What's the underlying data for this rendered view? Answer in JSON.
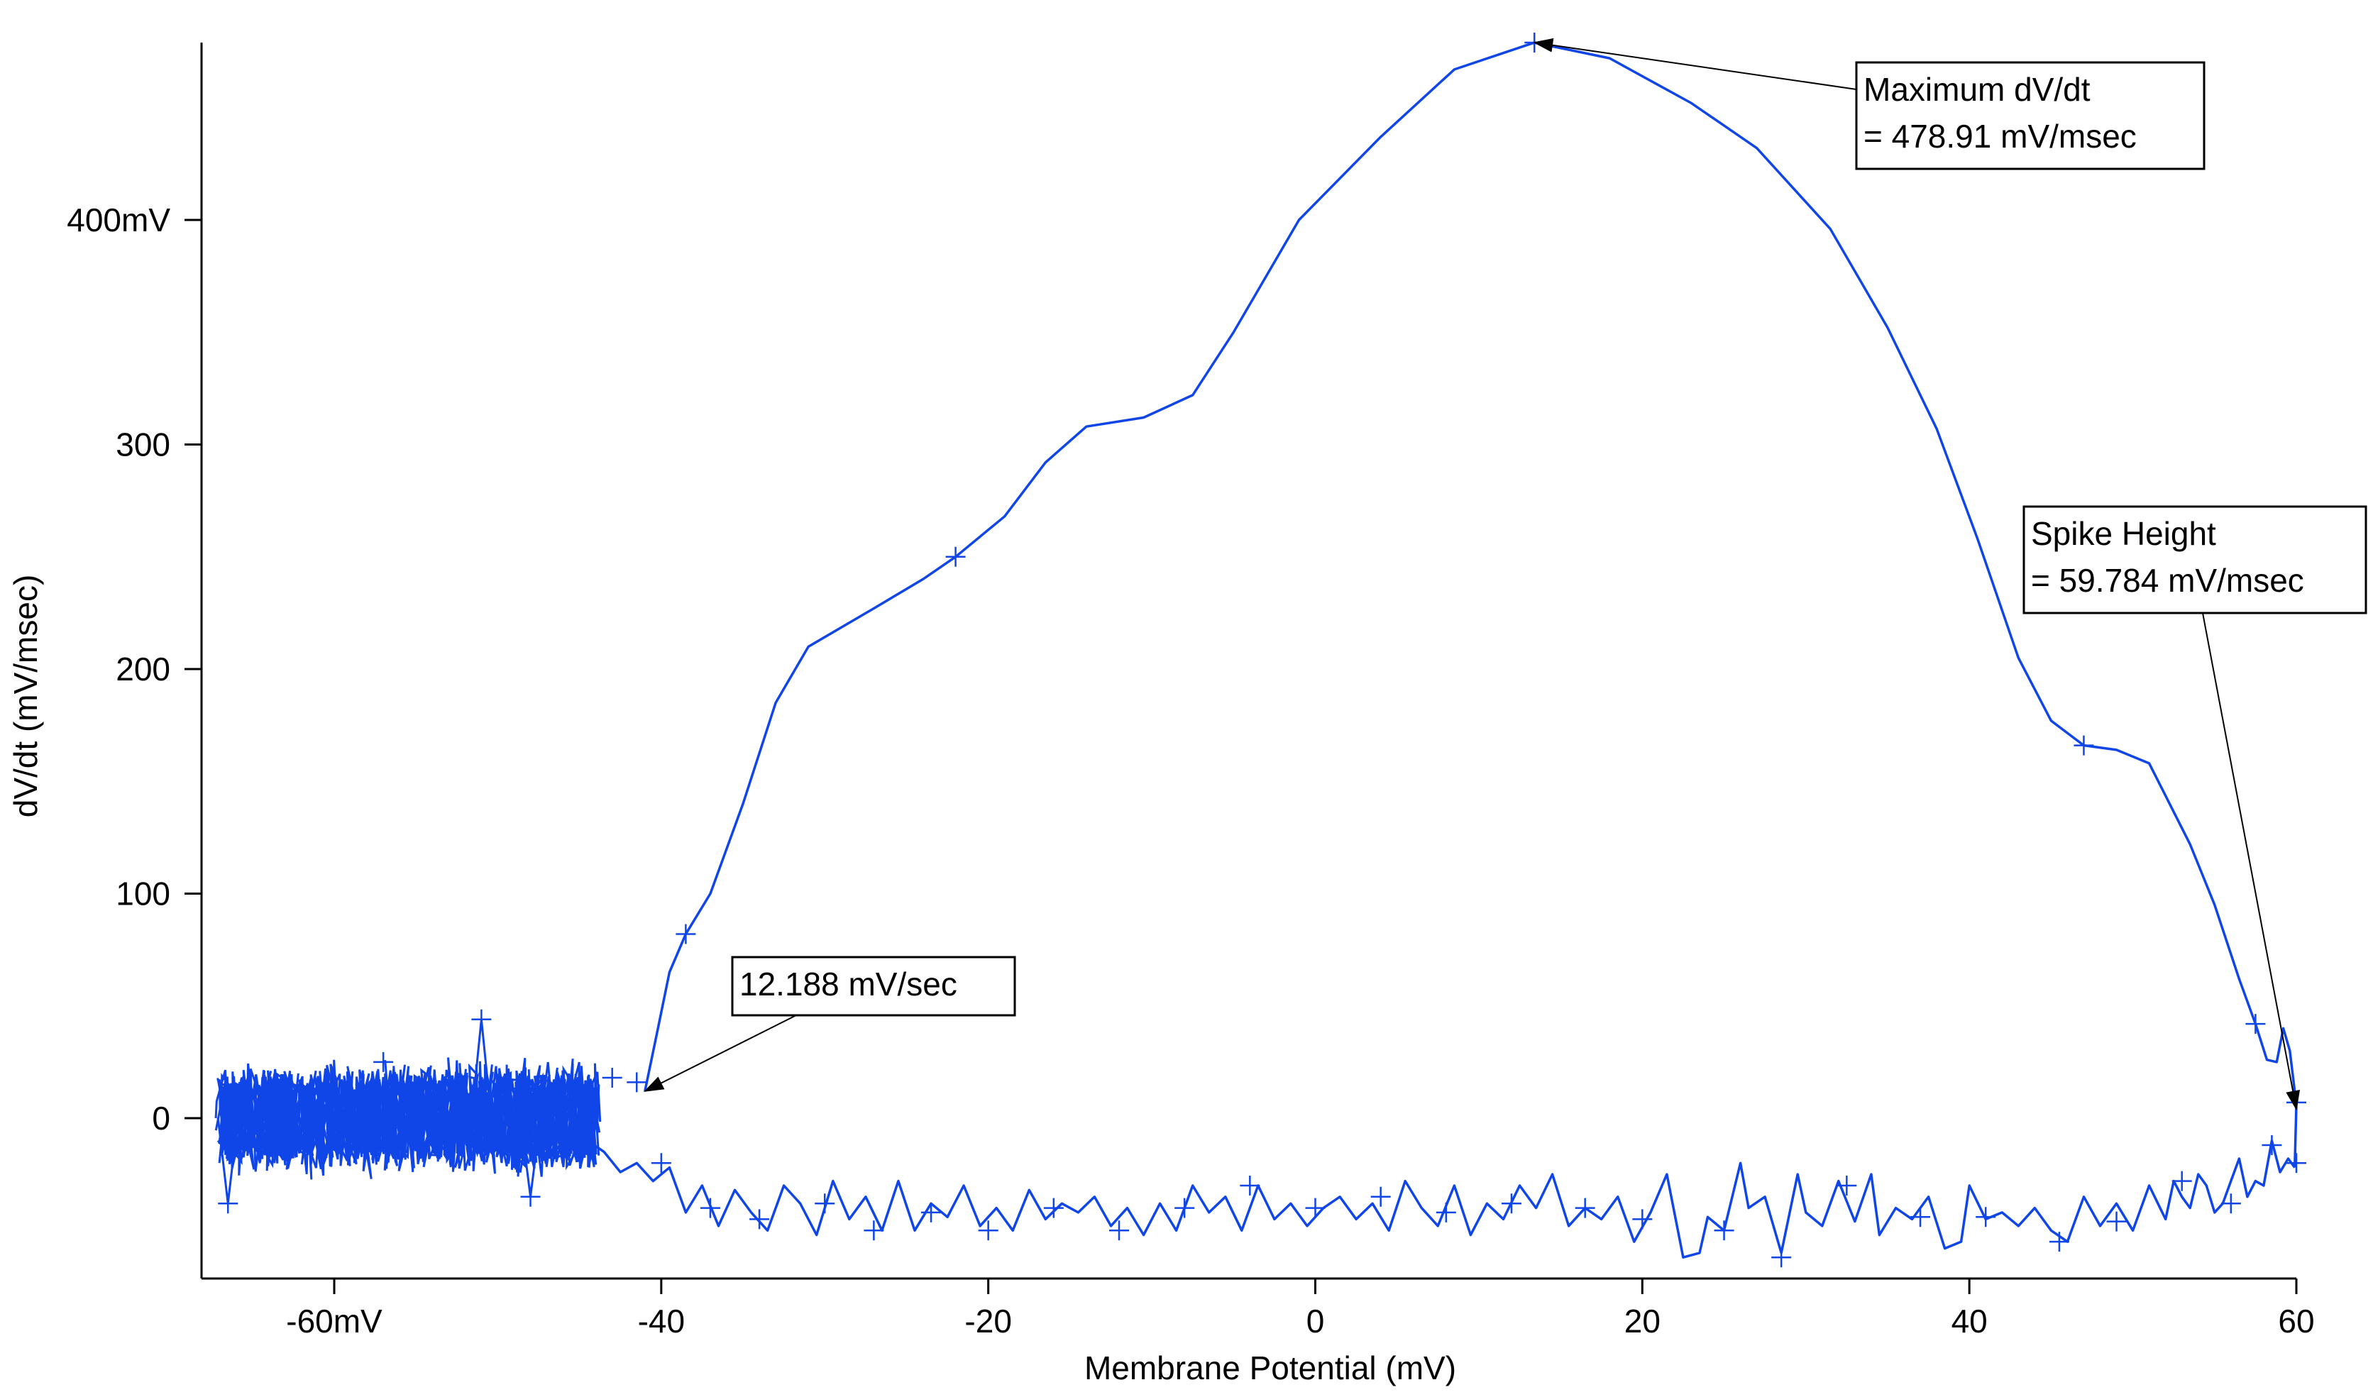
{
  "chart_data": {
    "type": "line",
    "title": "",
    "xlabel": "Membrane Potential (mV)",
    "ylabel": "dV/dt (mV/msec)",
    "xlim": [
      -67,
      60
    ],
    "ylim": [
      -72,
      480
    ],
    "grid": false,
    "legend": "none",
    "series_color": "#1046E8",
    "x_ticks": [
      {
        "value": -60,
        "label": "-60mV"
      },
      {
        "value": -40,
        "label": "-40"
      },
      {
        "value": -20,
        "label": "-20"
      },
      {
        "value": 0,
        "label": "0"
      },
      {
        "value": 20,
        "label": "20"
      },
      {
        "value": 40,
        "label": "40"
      },
      {
        "value": 60,
        "label": "60"
      }
    ],
    "y_ticks": [
      {
        "value": 0,
        "label": "0"
      },
      {
        "value": 100,
        "label": "100"
      },
      {
        "value": 200,
        "label": "200"
      },
      {
        "value": 300,
        "label": "300"
      },
      {
        "value": 400,
        "label": "400mV"
      }
    ],
    "series": [
      {
        "role": "upstroke",
        "points": [
          [
            -41,
            12
          ],
          [
            -40.2,
            40
          ],
          [
            -39.5,
            65
          ],
          [
            -38.5,
            82
          ],
          [
            -37,
            100
          ],
          [
            -35,
            140
          ],
          [
            -33,
            185
          ],
          [
            -31,
            210
          ],
          [
            -27,
            227
          ],
          [
            -24,
            240
          ],
          [
            -22,
            250
          ],
          [
            -19,
            268
          ],
          [
            -16.5,
            292
          ],
          [
            -14,
            308
          ],
          [
            -10.5,
            312
          ],
          [
            -7.5,
            322
          ],
          [
            -5,
            350
          ],
          [
            -1,
            400
          ],
          [
            4,
            437
          ],
          [
            8.5,
            467
          ],
          [
            13.4,
            479
          ],
          [
            18,
            472
          ],
          [
            23,
            452
          ],
          [
            27,
            432
          ],
          [
            31.5,
            396
          ],
          [
            35,
            352
          ],
          [
            38,
            307
          ],
          [
            40.5,
            258
          ],
          [
            43,
            205
          ],
          [
            45,
            177
          ],
          [
            47,
            166
          ],
          [
            49,
            164
          ],
          [
            51,
            158
          ],
          [
            53.5,
            122
          ],
          [
            55,
            95
          ],
          [
            56.5,
            62
          ],
          [
            57.5,
            42
          ],
          [
            58.2,
            26
          ],
          [
            58.8,
            25
          ],
          [
            59.2,
            40
          ],
          [
            59.6,
            30
          ],
          [
            60,
            6
          ],
          [
            59.9,
            -22
          ]
        ]
      },
      {
        "role": "downstroke",
        "points": [
          [
            59.9,
            -22
          ],
          [
            59.5,
            -18
          ],
          [
            59,
            -24
          ],
          [
            58.5,
            -10
          ],
          [
            58,
            -30
          ],
          [
            57.5,
            -28
          ],
          [
            57,
            -35
          ],
          [
            56.5,
            -18
          ],
          [
            56,
            -28
          ],
          [
            55.5,
            -38
          ],
          [
            55,
            -42
          ],
          [
            54.5,
            -30
          ],
          [
            54,
            -25
          ],
          [
            53.5,
            -40
          ],
          [
            53,
            -35
          ],
          [
            52.5,
            -28
          ],
          [
            52,
            -45
          ],
          [
            51,
            -30
          ],
          [
            50,
            -50
          ],
          [
            49,
            -38
          ],
          [
            48,
            -48
          ],
          [
            47,
            -35
          ],
          [
            46,
            -55
          ],
          [
            45,
            -50
          ],
          [
            44,
            -40
          ],
          [
            43,
            -48
          ],
          [
            42,
            -42
          ],
          [
            41,
            -45
          ],
          [
            40,
            -30
          ],
          [
            39.5,
            -55
          ],
          [
            38.5,
            -58
          ],
          [
            37.5,
            -35
          ],
          [
            36.5,
            -45
          ],
          [
            35.5,
            -40
          ],
          [
            34.5,
            -52
          ],
          [
            34,
            -25
          ],
          [
            33,
            -46
          ],
          [
            32,
            -28
          ],
          [
            31,
            -48
          ],
          [
            30,
            -42
          ],
          [
            29.5,
            -25
          ],
          [
            28.5,
            -60
          ],
          [
            27.5,
            -35
          ],
          [
            26.5,
            -40
          ],
          [
            26,
            -20
          ],
          [
            25,
            -50
          ],
          [
            24,
            -44
          ],
          [
            23.5,
            -60
          ],
          [
            22.5,
            -62
          ],
          [
            21.5,
            -25
          ],
          [
            20.5,
            -42
          ],
          [
            19.5,
            -55
          ],
          [
            18.5,
            -35
          ],
          [
            17.5,
            -45
          ],
          [
            16.5,
            -40
          ],
          [
            15.5,
            -48
          ],
          [
            14.5,
            -25
          ],
          [
            13.5,
            -40
          ],
          [
            12.5,
            -30
          ],
          [
            11.5,
            -45
          ],
          [
            10.5,
            -38
          ],
          [
            9.5,
            -52
          ],
          [
            8.5,
            -30
          ],
          [
            7.5,
            -48
          ],
          [
            6.5,
            -40
          ],
          [
            5.5,
            -28
          ],
          [
            4.5,
            -50
          ],
          [
            3.5,
            -38
          ],
          [
            2.5,
            -45
          ],
          [
            1.5,
            -35
          ],
          [
            0.5,
            -40
          ],
          [
            -0.5,
            -48
          ],
          [
            -1.5,
            -38
          ],
          [
            -2.5,
            -45
          ],
          [
            -3.5,
            -30
          ],
          [
            -4.5,
            -50
          ],
          [
            -5.5,
            -35
          ],
          [
            -6.5,
            -42
          ],
          [
            -7.5,
            -30
          ],
          [
            -8.5,
            -50
          ],
          [
            -9.5,
            -38
          ],
          [
            -10.5,
            -52
          ],
          [
            -11.5,
            -40
          ],
          [
            -12.5,
            -48
          ],
          [
            -13.5,
            -35
          ],
          [
            -14.5,
            -42
          ],
          [
            -15.5,
            -38
          ],
          [
            -16.5,
            -45
          ],
          [
            -17.5,
            -32
          ],
          [
            -18.5,
            -50
          ],
          [
            -19.5,
            -40
          ],
          [
            -20.5,
            -48
          ],
          [
            -21.5,
            -30
          ],
          [
            -22.5,
            -44
          ],
          [
            -23.5,
            -38
          ],
          [
            -24.5,
            -50
          ],
          [
            -25.5,
            -28
          ],
          [
            -26.5,
            -50
          ],
          [
            -27.5,
            -35
          ],
          [
            -28.5,
            -45
          ],
          [
            -29.5,
            -28
          ],
          [
            -30.5,
            -52
          ],
          [
            -31.5,
            -38
          ],
          [
            -32.5,
            -30
          ],
          [
            -33.5,
            -50
          ],
          [
            -34.5,
            -42
          ],
          [
            -35.5,
            -32
          ],
          [
            -36.5,
            -48
          ],
          [
            -37.5,
            -30
          ],
          [
            -38.5,
            -42
          ],
          [
            -39.5,
            -22
          ],
          [
            -40.5,
            -28
          ],
          [
            -41.5,
            -20
          ],
          [
            -42.5,
            -24
          ],
          [
            -43.5,
            -15
          ],
          [
            -44.5,
            -10
          ]
        ]
      }
    ],
    "noise_cluster": {
      "x_range": [
        -67,
        -44
      ],
      "y_range": [
        -28,
        28
      ],
      "y_extremes": [
        [
          -51,
          44
        ],
        [
          -66.5,
          -38
        ],
        [
          -48,
          -35
        ]
      ]
    },
    "markers": [
      [
        -66.5,
        -38
      ],
      [
        -63,
        15
      ],
      [
        -60,
        10
      ],
      [
        -57,
        25
      ],
      [
        -51,
        44
      ],
      [
        -48,
        -35
      ],
      [
        -43,
        18
      ],
      [
        -41.5,
        16
      ],
      [
        -40,
        -20
      ],
      [
        -37,
        -40
      ],
      [
        -34,
        -45
      ],
      [
        -30,
        -38
      ],
      [
        -27,
        -50
      ],
      [
        -23.5,
        -42
      ],
      [
        -20,
        -50
      ],
      [
        -16,
        -40
      ],
      [
        -12,
        -50
      ],
      [
        -8,
        -40
      ],
      [
        -4,
        -30
      ],
      [
        0,
        -40
      ],
      [
        4,
        -35
      ],
      [
        8,
        -42
      ],
      [
        12,
        -38
      ],
      [
        16.5,
        -40
      ],
      [
        20,
        -45
      ],
      [
        25,
        -50
      ],
      [
        28.5,
        -62
      ],
      [
        32.5,
        -30
      ],
      [
        37,
        -44
      ],
      [
        41,
        -44
      ],
      [
        45.5,
        -55
      ],
      [
        49,
        -46
      ],
      [
        53,
        -28
      ],
      [
        56,
        -38
      ],
      [
        58.5,
        -12
      ],
      [
        60,
        -20
      ],
      [
        60,
        7
      ],
      [
        -38.5,
        82
      ],
      [
        -22,
        250
      ],
      [
        13.4,
        479
      ],
      [
        47,
        166
      ],
      [
        57.5,
        42
      ]
    ],
    "annotations": [
      {
        "name": "max-dvdt",
        "lines": [
          "Maximum dV/dt",
          "= 478.91 mV/msec"
        ],
        "target": [
          13.4,
          479
        ]
      },
      {
        "name": "spike-height",
        "lines": [
          "Spike Height",
          "= 59.784 mV/msec"
        ],
        "target": [
          60,
          4
        ]
      },
      {
        "name": "threshold",
        "lines": [
          "12.188 mV/sec"
        ],
        "target": [
          -41,
          12
        ]
      }
    ]
  }
}
